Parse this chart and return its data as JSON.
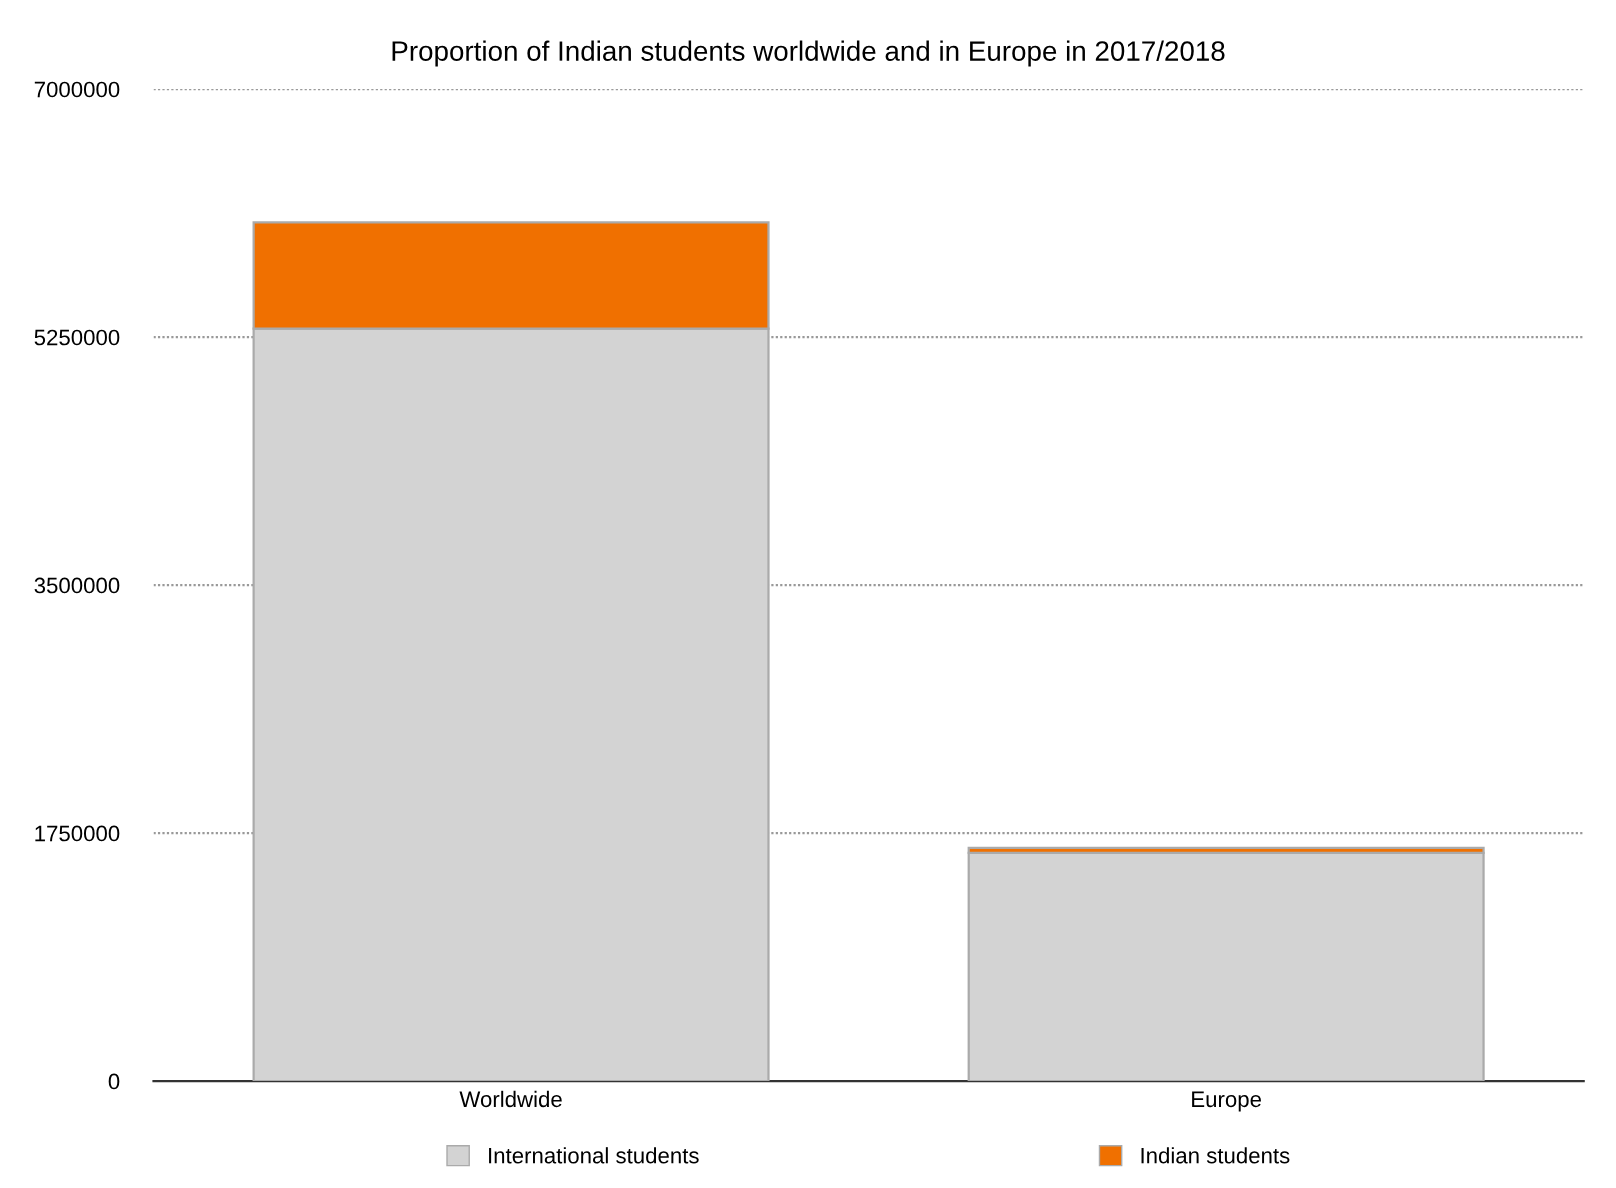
{
  "chart_data": {
    "type": "bar",
    "subtitle": "Proportion of Indian students worldwide and in Europe in 2017/2018",
    "categories": [
      "Worldwide",
      "Europe"
    ],
    "stacked": true,
    "series": [
      {
        "name": "International students",
        "color": "#d3d3d3",
        "values": [
          5310000,
          1610000
        ]
      },
      {
        "name": "Indian students",
        "color": "#f07000",
        "values": [
          750000,
          35000
        ]
      }
    ],
    "ylim": [
      0,
      7000000
    ],
    "yticks": [
      0,
      1750000,
      3500000,
      5250000,
      7000000
    ],
    "grid": "y",
    "legend": "bottom"
  }
}
